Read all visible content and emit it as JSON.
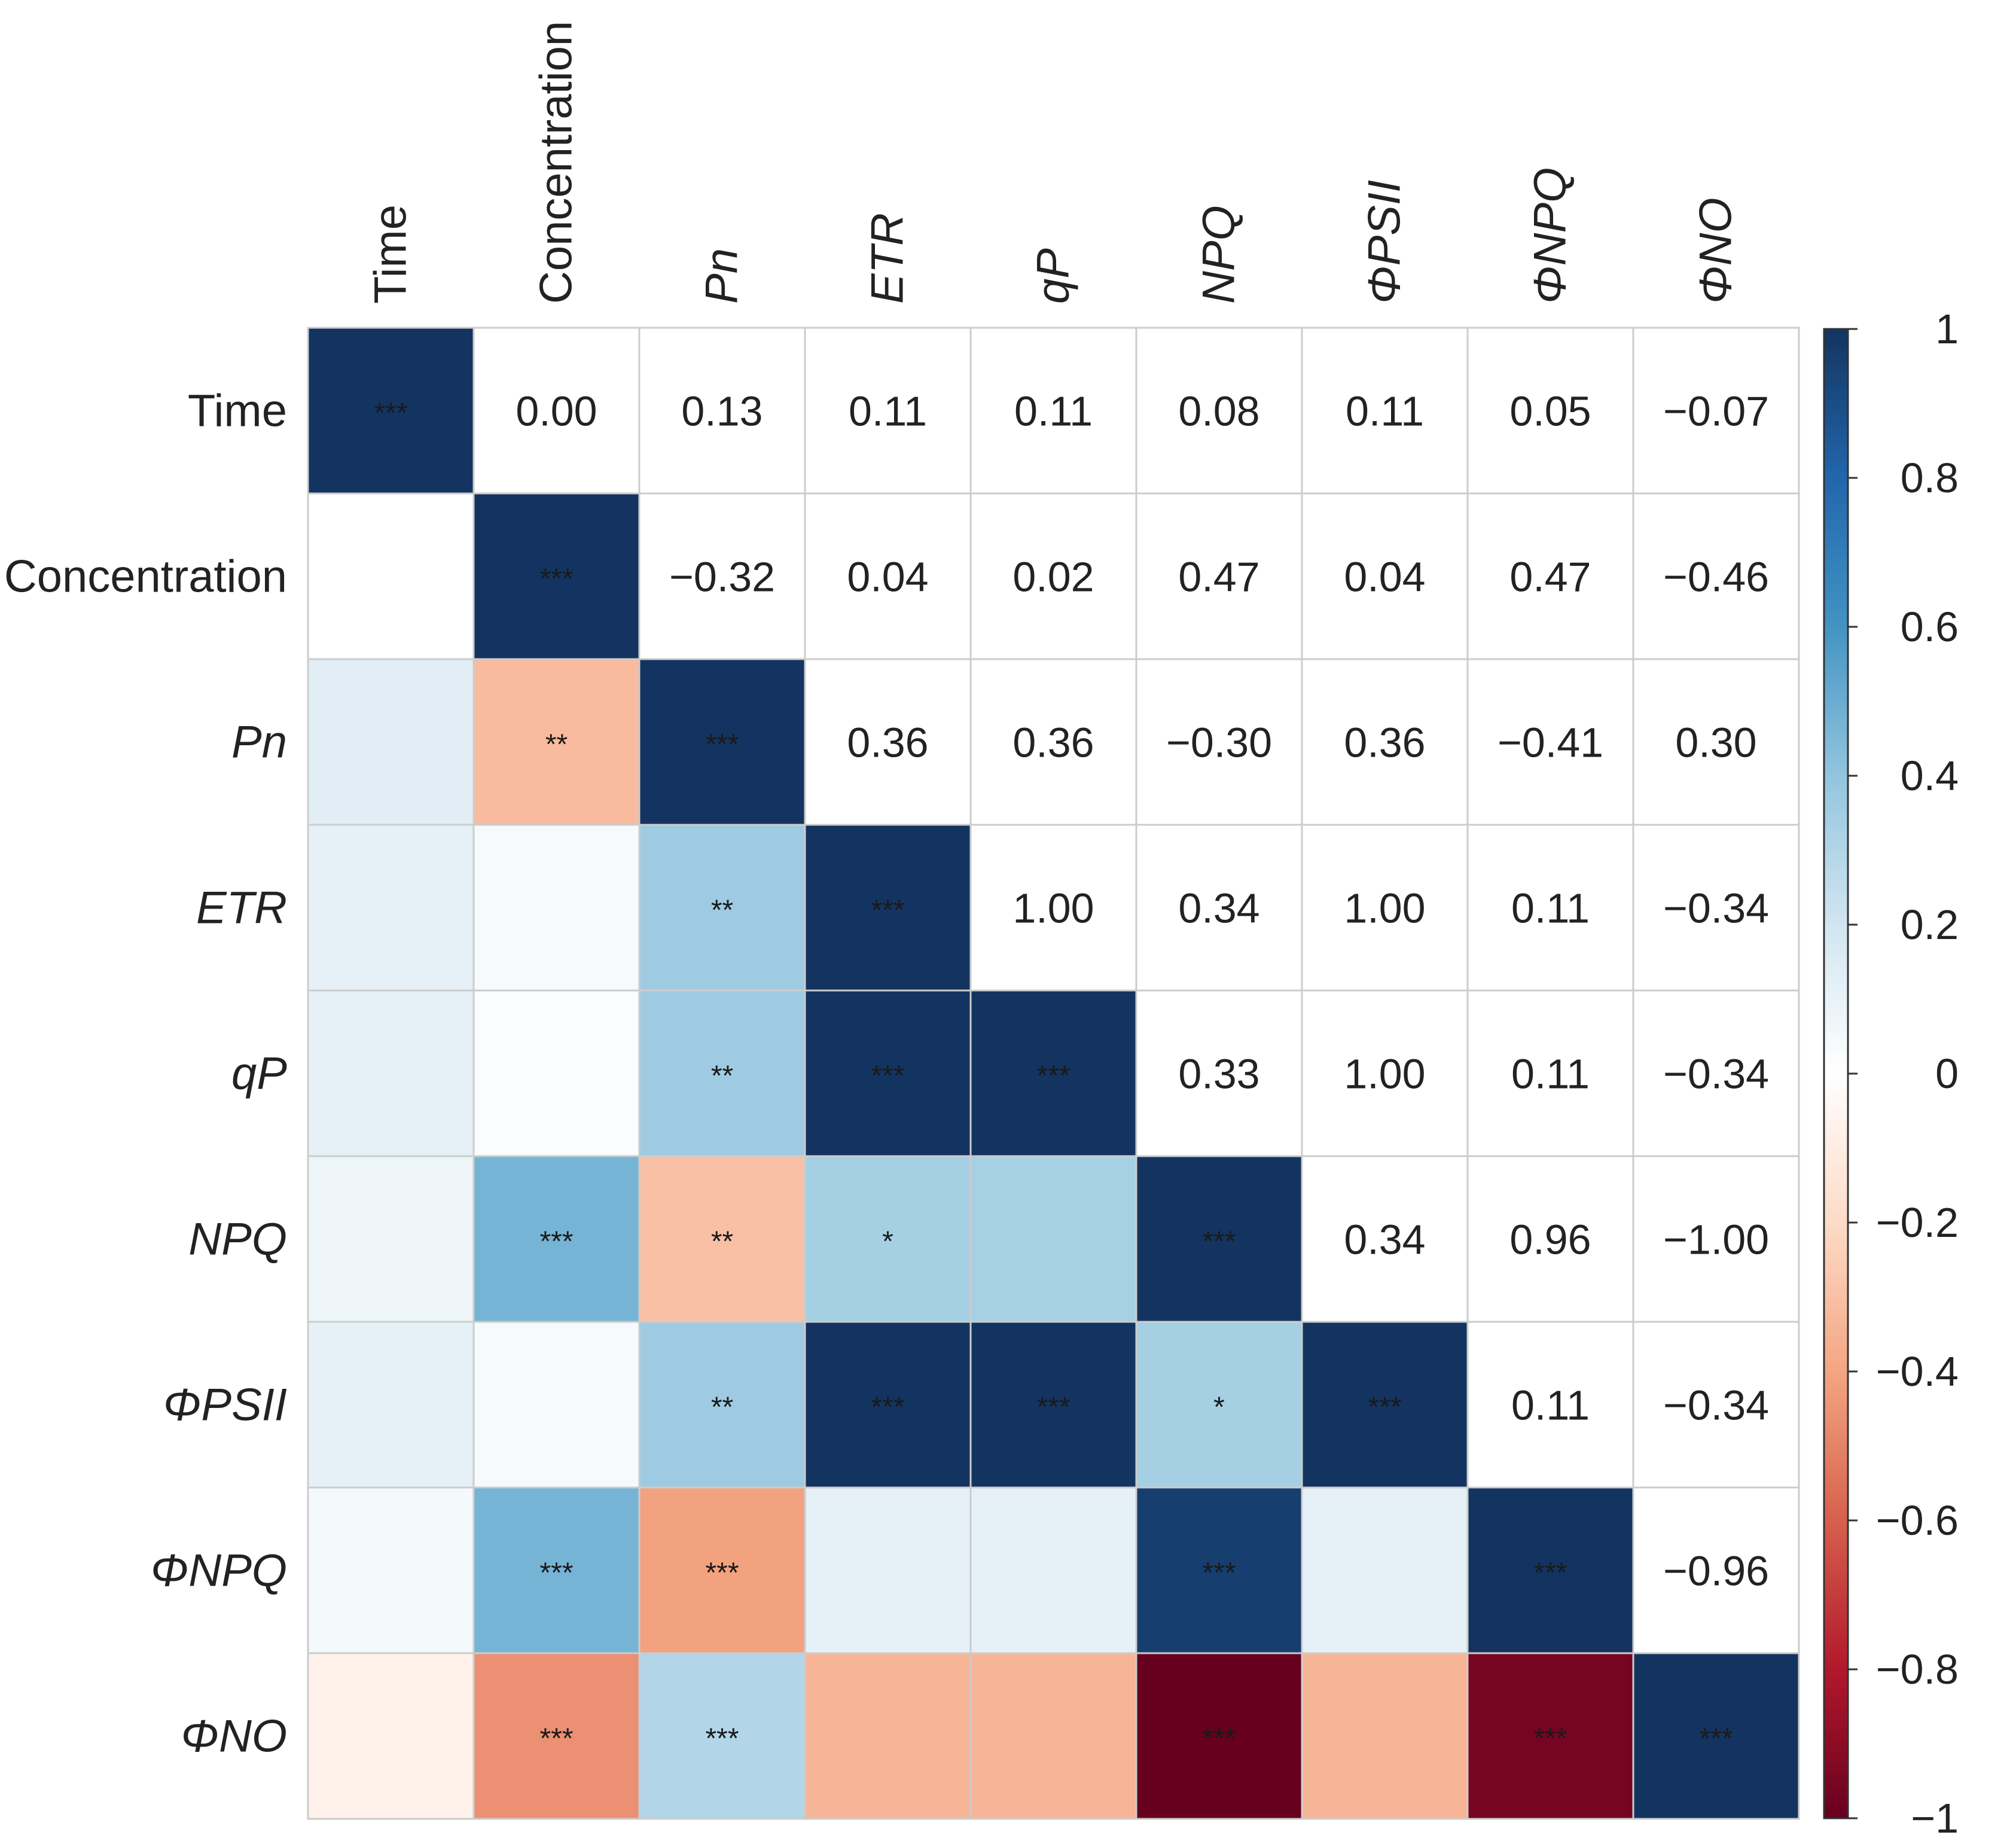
{
  "chart_data": {
    "type": "heatmap",
    "title": "",
    "variables": [
      "Time",
      "Concentration",
      "Pn",
      "ETR",
      "qP",
      "NPQ",
      "ΦPSII",
      "ΦNPQ",
      "ΦNO"
    ],
    "italic": [
      false,
      false,
      true,
      true,
      true,
      true,
      true,
      true,
      true
    ],
    "values": [
      [
        1.0,
        0.0,
        0.13,
        0.11,
        0.11,
        0.08,
        0.11,
        0.05,
        -0.07
      ],
      [
        0.0,
        1.0,
        -0.32,
        0.04,
        0.02,
        0.47,
        0.04,
        0.47,
        -0.46
      ],
      [
        0.13,
        -0.32,
        1.0,
        0.36,
        0.36,
        -0.3,
        0.36,
        -0.41,
        0.3
      ],
      [
        0.11,
        0.04,
        0.36,
        1.0,
        1.0,
        0.34,
        1.0,
        0.11,
        -0.34
      ],
      [
        0.11,
        0.02,
        0.36,
        1.0,
        1.0,
        0.33,
        1.0,
        0.11,
        -0.34
      ],
      [
        0.08,
        0.47,
        -0.3,
        0.34,
        0.33,
        1.0,
        0.34,
        0.96,
        -1.0
      ],
      [
        0.11,
        0.04,
        0.36,
        1.0,
        1.0,
        0.34,
        1.0,
        0.11,
        -0.34
      ],
      [
        0.05,
        0.47,
        -0.41,
        0.11,
        0.11,
        0.96,
        0.11,
        1.0,
        -0.96
      ],
      [
        -0.07,
        -0.46,
        0.3,
        -0.34,
        -0.34,
        -1.0,
        -0.34,
        -0.96,
        1.0
      ]
    ],
    "value_labels": [
      [
        "",
        "0.00",
        "0.13",
        "0.11",
        "0.11",
        "0.08",
        "0.11",
        "0.05",
        "−0.07"
      ],
      [
        "",
        "",
        "−0.32",
        "0.04",
        "0.02",
        "0.47",
        "0.04",
        "0.47",
        "−0.46"
      ],
      [
        "",
        "",
        "",
        "0.36",
        "0.36",
        "−0.30",
        "0.36",
        "−0.41",
        "0.30"
      ],
      [
        "",
        "",
        "",
        "",
        "1.00",
        "0.34",
        "1.00",
        "0.11",
        "−0.34"
      ],
      [
        "",
        "",
        "",
        "",
        "",
        "0.33",
        "1.00",
        "0.11",
        "−0.34"
      ],
      [
        "",
        "",
        "",
        "",
        "",
        "",
        "0.34",
        "0.96",
        "−1.00"
      ],
      [
        "",
        "",
        "",
        "",
        "",
        "",
        "",
        "0.11",
        "−0.34"
      ],
      [
        "",
        "",
        "",
        "",
        "",
        "",
        "",
        "",
        "−0.96"
      ],
      [
        "",
        "",
        "",
        "",
        "",
        "",
        "",
        "",
        ""
      ]
    ],
    "significance": [
      [
        "***",
        "",
        "",
        "",
        "",
        "",
        "",
        "",
        ""
      ],
      [
        "",
        "***",
        "",
        "",
        "",
        "",
        "",
        "",
        ""
      ],
      [
        "",
        "**",
        "***",
        "",
        "",
        "",
        "",
        "",
        ""
      ],
      [
        "",
        "",
        "**",
        "***",
        "",
        "",
        "",
        "",
        ""
      ],
      [
        "",
        "",
        "**",
        "***",
        "***",
        "",
        "",
        "",
        ""
      ],
      [
        "",
        "***",
        "**",
        "*",
        "",
        "***",
        "",
        "",
        ""
      ],
      [
        "",
        "",
        "**",
        "***",
        "***",
        "*",
        "***",
        "",
        ""
      ],
      [
        "",
        "***",
        "***",
        "",
        "",
        "***",
        "",
        "***",
        ""
      ],
      [
        "",
        "***",
        "***",
        "",
        "",
        "***",
        "",
        "***",
        "***"
      ]
    ],
    "colorbar": {
      "range": [
        -1,
        1
      ],
      "ticks": [
        1,
        0.8,
        0.6,
        0.4,
        0.2,
        0,
        -0.2,
        -0.4,
        -0.6,
        -0.8,
        -1
      ],
      "tick_labels": [
        "1",
        "0.8",
        "0.6",
        "0.4",
        "0.2",
        "0",
        "−0.2",
        "−0.4",
        "−0.6",
        "−0.8",
        "−1"
      ],
      "colormap": "RdBu"
    },
    "colors": {
      "positive_max": "#133460",
      "negative_max": "#670c20",
      "neutral": "#ffffff",
      "grid": "#cccccc",
      "text": "#222222"
    }
  }
}
